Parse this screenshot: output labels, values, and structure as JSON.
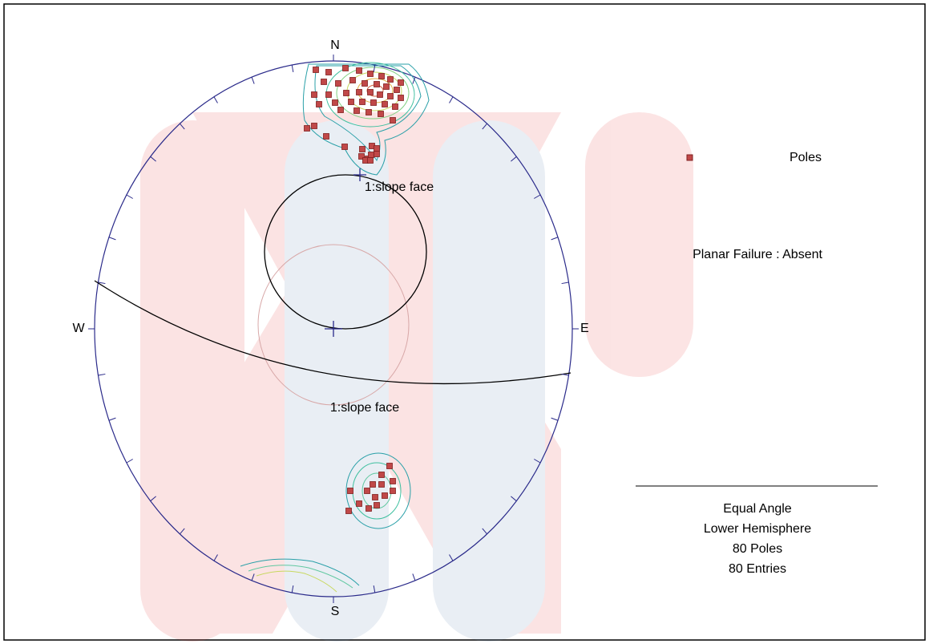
{
  "compass": {
    "north": "N",
    "south": "S",
    "east": "E",
    "west": "W"
  },
  "plane_labels": [
    "1:slope face",
    "1:slope face"
  ],
  "legend": {
    "symbol": "Poles",
    "analysis": "Planar Failure : Absent"
  },
  "info": [
    "Equal Angle",
    "Lower Hemisphere",
    "80 Poles",
    "80 Entries"
  ]
}
